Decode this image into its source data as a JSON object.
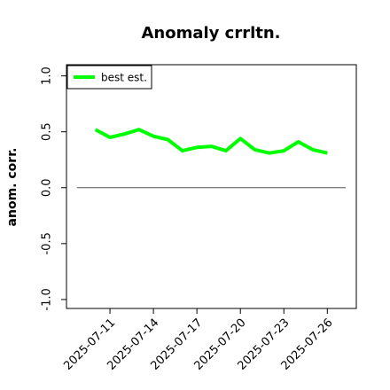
{
  "chart_data": {
    "type": "line",
    "title": "Anomaly crrltn.",
    "y_label": "anom. corr.",
    "x": [
      "2025-07-10",
      "2025-07-11",
      "2025-07-12",
      "2025-07-13",
      "2025-07-14",
      "2025-07-15",
      "2025-07-16",
      "2025-07-17",
      "2025-07-18",
      "2025-07-19",
      "2025-07-20",
      "2025-07-21",
      "2025-07-22",
      "2025-07-23",
      "2025-07-24",
      "2025-07-25",
      "2025-07-26"
    ],
    "series": [
      {
        "name": "best est.",
        "color": "#00ff00",
        "values": [
          0.52,
          0.45,
          0.48,
          0.52,
          0.46,
          0.43,
          0.33,
          0.36,
          0.37,
          0.33,
          0.44,
          0.34,
          0.31,
          0.33,
          0.41,
          0.34,
          0.31
        ]
      }
    ],
    "xlim": [
      "2025-07-08",
      "2025-07-28"
    ],
    "xticks": [
      "2025-07-11",
      "2025-07-14",
      "2025-07-17",
      "2025-07-20",
      "2025-07-23",
      "2025-07-26"
    ],
    "ylim": [
      -1.08,
      1.1
    ],
    "yticks": [
      {
        "value": -1,
        "label": "-1.0"
      },
      -0.5,
      {
        "value": 0,
        "label": "0.0"
      },
      0.5,
      {
        "value": 1,
        "label": "1.0"
      }
    ],
    "hline": 0,
    "legend": "upper left",
    "grid": false
  }
}
